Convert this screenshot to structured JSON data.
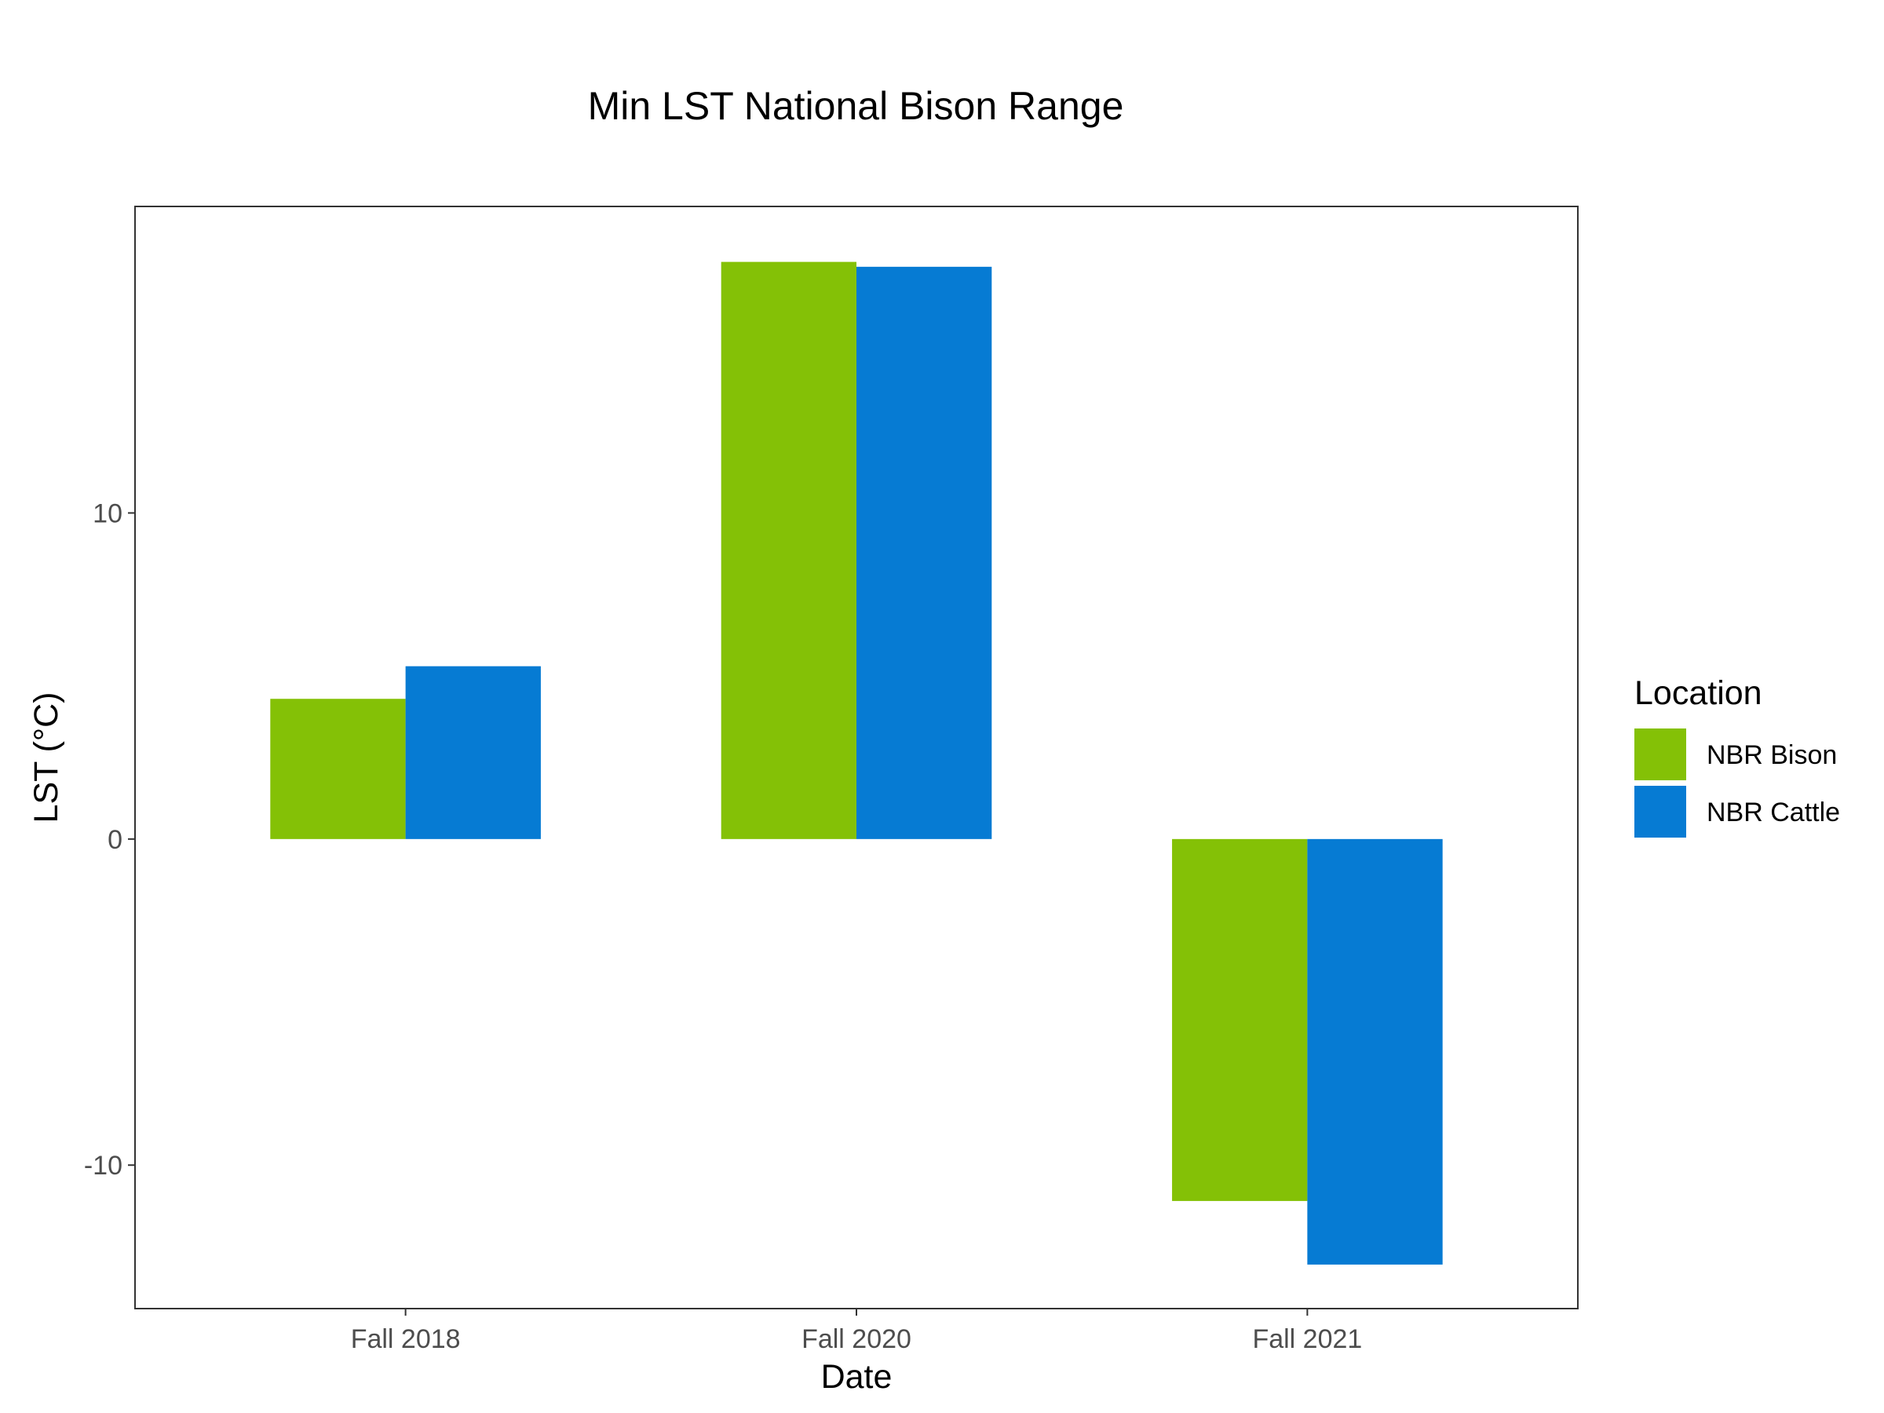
{
  "chart_data": {
    "type": "bar",
    "title": "Min LST National Bison Range",
    "xlabel": "Date",
    "ylabel": "LST (°C)",
    "categories": [
      "Fall 2018",
      "Fall 2020",
      "Fall 2021"
    ],
    "series": [
      {
        "name": "NBR Bison",
        "color": "#84c106",
        "values": [
          4.3,
          17.7,
          -11.1
        ]
      },
      {
        "name": "NBR Cattle",
        "color": "#067bd3",
        "values": [
          5.3,
          17.55,
          -13.05
        ]
      }
    ],
    "ylim": [
      -14.4,
      19.4
    ],
    "yticks": [
      -10,
      0,
      10
    ],
    "ytick_labels": [
      "-10",
      "0",
      "10"
    ],
    "grid": false,
    "legend": {
      "title": "Location",
      "position": "right"
    }
  }
}
